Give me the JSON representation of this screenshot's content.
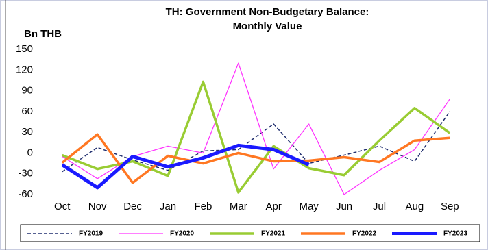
{
  "chart_data": {
    "type": "line",
    "title": [
      "TH: Government Non-Budgetary Balance:",
      "Monthly Value"
    ],
    "y_label": "Bn THB",
    "categories": [
      "Oct",
      "Nov",
      "Dec",
      "Jan",
      "Feb",
      "Mar",
      "Apr",
      "May",
      "Jun",
      "Jul",
      "Aug",
      "Sep"
    ],
    "series": [
      {
        "name": "FY2019",
        "color": "#1f2d6e",
        "values": [
          -27,
          8,
          -10,
          -25,
          3,
          5,
          42,
          -15,
          -3,
          10,
          -12,
          60
        ]
      },
      {
        "name": "FY2020",
        "color": "#ff33ff",
        "values": [
          -5,
          -37,
          -5,
          10,
          0,
          130,
          -23,
          42,
          -60,
          -25,
          5,
          78
        ]
      },
      {
        "name": "FY2021",
        "color": "#99cc33",
        "values": [
          -3,
          -23,
          -12,
          -33,
          103,
          -57,
          10,
          -22,
          -32,
          18,
          65,
          29
        ]
      },
      {
        "name": "FY2022",
        "color": "#ff7722",
        "values": [
          -14,
          27,
          -43,
          -4,
          -15,
          0,
          -12,
          -11,
          -6,
          -13,
          18,
          22
        ]
      },
      {
        "name": "FY2023",
        "color": "#1a1aff",
        "values": [
          -17,
          -50,
          -5,
          -20,
          -7,
          11,
          5,
          -17,
          null,
          null,
          null,
          null
        ]
      }
    ],
    "ylim": [
      -60,
      150
    ],
    "yticks": [
      -60,
      -30,
      0,
      30,
      60,
      90,
      120,
      150
    ],
    "grid": false
  }
}
